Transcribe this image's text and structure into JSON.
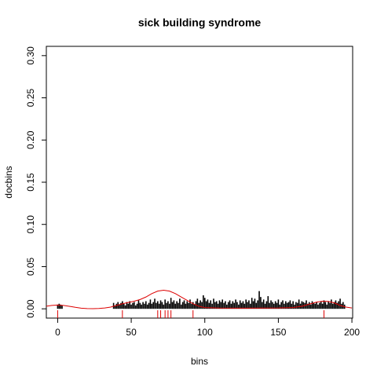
{
  "chart_data": {
    "type": "spike",
    "title": "sick building syndrome",
    "xlabel": "bins",
    "ylabel": "docbins",
    "xlim": [
      -7.7,
      200.5
    ],
    "ylim": [
      -0.011,
      0.311
    ],
    "xticks": [
      0,
      50,
      100,
      150,
      200
    ],
    "yticks": [
      {
        "value": 0,
        "label": "0.00"
      },
      {
        "value": 0.05,
        "label": "0.05"
      },
      {
        "value": 0.1,
        "label": "0.10"
      },
      {
        "value": 0.15,
        "label": "0.15"
      },
      {
        "value": 0.2,
        "label": "0.20"
      },
      {
        "value": 0.25,
        "label": "0.25"
      },
      {
        "value": 0.3,
        "label": "0.30"
      }
    ],
    "color": "#000000",
    "x": [
      0,
      1,
      2,
      3,
      38,
      39,
      40,
      41,
      42,
      43,
      44,
      45,
      46,
      47,
      48,
      49,
      50,
      51,
      52,
      53,
      54,
      55,
      56,
      57,
      58,
      59,
      60,
      61,
      62,
      63,
      64,
      65,
      66,
      67,
      68,
      69,
      70,
      71,
      72,
      73,
      74,
      75,
      76,
      77,
      78,
      79,
      80,
      81,
      82,
      83,
      84,
      85,
      86,
      87,
      88,
      89,
      90,
      91,
      92,
      93,
      94,
      95,
      96,
      97,
      98,
      99,
      100,
      101,
      102,
      103,
      104,
      105,
      106,
      107,
      108,
      109,
      110,
      111,
      112,
      113,
      114,
      115,
      116,
      117,
      118,
      119,
      120,
      121,
      122,
      123,
      124,
      125,
      126,
      127,
      128,
      129,
      130,
      131,
      132,
      133,
      134,
      135,
      136,
      137,
      138,
      139,
      140,
      141,
      142,
      143,
      144,
      145,
      146,
      147,
      148,
      149,
      150,
      151,
      152,
      153,
      154,
      155,
      156,
      157,
      158,
      159,
      160,
      161,
      162,
      163,
      164,
      165,
      166,
      167,
      168,
      169,
      170,
      171,
      172,
      173,
      174,
      175,
      176,
      177,
      178,
      179,
      180,
      181,
      182,
      183,
      184,
      185,
      186,
      187,
      188,
      189,
      190,
      191,
      192,
      193,
      194,
      195
    ],
    "values": [
      0.005,
      0.006,
      0.005,
      0.004,
      0.007,
      0.004,
      0.006,
      0.008,
      0.005,
      0.007,
      0.009,
      0.006,
      0.004,
      0.008,
      0.006,
      0.009,
      0.005,
      0.007,
      0.008,
      0.004,
      0.006,
      0.01,
      0.007,
      0.005,
      0.008,
      0.006,
      0.009,
      0.005,
      0.007,
      0.011,
      0.006,
      0.008,
      0.012,
      0.007,
      0.009,
      0.006,
      0.01,
      0.008,
      0.005,
      0.011,
      0.007,
      0.009,
      0.006,
      0.013,
      0.008,
      0.01,
      0.006,
      0.009,
      0.007,
      0.012,
      0.005,
      0.008,
      0.01,
      0.006,
      0.009,
      0.007,
      0.011,
      0.006,
      0.008,
      0.005,
      0.009,
      0.012,
      0.007,
      0.01,
      0.008,
      0.016,
      0.013,
      0.009,
      0.011,
      0.007,
      0.01,
      0.006,
      0.012,
      0.008,
      0.009,
      0.006,
      0.01,
      0.008,
      0.011,
      0.007,
      0.009,
      0.005,
      0.008,
      0.01,
      0.006,
      0.009,
      0.007,
      0.011,
      0.008,
      0.005,
      0.01,
      0.007,
      0.009,
      0.006,
      0.011,
      0.008,
      0.01,
      0.006,
      0.013,
      0.009,
      0.012,
      0.007,
      0.01,
      0.021,
      0.014,
      0.008,
      0.011,
      0.006,
      0.009,
      0.015,
      0.007,
      0.01,
      0.008,
      0.006,
      0.009,
      0.007,
      0.011,
      0.005,
      0.008,
      0.01,
      0.006,
      0.009,
      0.007,
      0.008,
      0.01,
      0.006,
      0.009,
      0.005,
      0.008,
      0.007,
      0.011,
      0.006,
      0.009,
      0.008,
      0.007,
      0.01,
      0.006,
      0.008,
      0.005,
      0.009,
      0.007,
      0.006,
      0.008,
      0.005,
      0.007,
      0.009,
      0.006,
      0.01,
      0.008,
      0.005,
      0.009,
      0.007,
      0.011,
      0.006,
      0.008,
      0.01,
      0.007,
      0.009,
      0.012,
      0.006,
      0.008,
      0.005
    ],
    "density": {
      "color": "#dd0000",
      "x": [
        -8,
        -4,
        0,
        4,
        8,
        12,
        16,
        20,
        24,
        28,
        32,
        36,
        40,
        44,
        48,
        52,
        56,
        60,
        64,
        68,
        72,
        76,
        80,
        84,
        88,
        92,
        96,
        100,
        110,
        120,
        130,
        140,
        150,
        160,
        166,
        172,
        176,
        180,
        184,
        188,
        192,
        196,
        200
      ],
      "values": [
        0.003,
        0.004,
        0.0045,
        0.004,
        0.003,
        0.0018,
        0.0008,
        0.0003,
        0.0002,
        0.0004,
        0.001,
        0.002,
        0.004,
        0.006,
        0.0075,
        0.009,
        0.011,
        0.014,
        0.018,
        0.021,
        0.022,
        0.021,
        0.018,
        0.014,
        0.01,
        0.006,
        0.003,
        0.0015,
        0.0009,
        0.0008,
        0.0008,
        0.0009,
        0.001,
        0.0015,
        0.003,
        0.006,
        0.008,
        0.009,
        0.0088,
        0.007,
        0.004,
        0.002,
        0.001
      ]
    },
    "rug": {
      "color": "#dd0000",
      "x": [
        0,
        44,
        68,
        70,
        73,
        75,
        77,
        92,
        181
      ]
    }
  }
}
